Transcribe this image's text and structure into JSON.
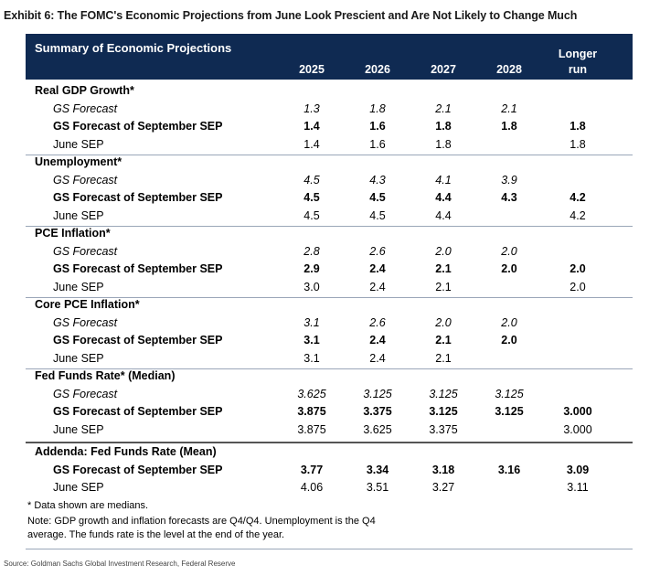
{
  "exhibit_title": "Exhibit 6: The FOMC's Economic Projections from June Look Prescient and Are Not Likely to Change Much",
  "header": {
    "title": "Summary of Economic Projections",
    "columns": [
      "2025",
      "2026",
      "2027",
      "2028"
    ],
    "longer_run": [
      "Longer",
      "run"
    ]
  },
  "sections": [
    {
      "title": "Real GDP Growth*",
      "gs": {
        "label": "GS Forecast",
        "values": [
          "1.3",
          "1.8",
          "2.1",
          "2.1",
          ""
        ]
      },
      "sep": {
        "label": "GS Forecast of September SEP",
        "values": [
          "1.4",
          "1.6",
          "1.8",
          "1.8",
          "1.8"
        ]
      },
      "june": {
        "label": "June SEP",
        "values": [
          "1.4",
          "1.6",
          "1.8",
          "",
          "1.8"
        ]
      }
    },
    {
      "title": "Unemployment*",
      "gs": {
        "label": "GS Forecast",
        "values": [
          "4.5",
          "4.3",
          "4.1",
          "3.9",
          ""
        ]
      },
      "sep": {
        "label": "GS Forecast of September SEP",
        "values": [
          "4.5",
          "4.5",
          "4.4",
          "4.3",
          "4.2"
        ]
      },
      "june": {
        "label": "June SEP",
        "values": [
          "4.5",
          "4.5",
          "4.4",
          "",
          "4.2"
        ]
      }
    },
    {
      "title": "PCE Inflation*",
      "gs": {
        "label": "GS Forecast",
        "values": [
          "2.8",
          "2.6",
          "2.0",
          "2.0",
          ""
        ]
      },
      "sep": {
        "label": "GS Forecast of September SEP",
        "values": [
          "2.9",
          "2.4",
          "2.1",
          "2.0",
          "2.0"
        ]
      },
      "june": {
        "label": "June SEP",
        "values": [
          "3.0",
          "2.4",
          "2.1",
          "",
          "2.0"
        ]
      }
    },
    {
      "title": "Core PCE Inflation*",
      "gs": {
        "label": "GS Forecast",
        "values": [
          "3.1",
          "2.6",
          "2.0",
          "2.0",
          ""
        ]
      },
      "sep": {
        "label": "GS Forecast of September SEP",
        "values": [
          "3.1",
          "2.4",
          "2.1",
          "2.0",
          ""
        ]
      },
      "june": {
        "label": "June SEP",
        "values": [
          "3.1",
          "2.4",
          "2.1",
          "",
          ""
        ]
      }
    },
    {
      "title": "Fed Funds Rate* (Median)",
      "gs": {
        "label": "GS Forecast",
        "values": [
          "3.625",
          "3.125",
          "3.125",
          "3.125",
          ""
        ]
      },
      "sep": {
        "label": "GS Forecast of September SEP",
        "values": [
          "3.875",
          "3.375",
          "3.125",
          "3.125",
          "3.000"
        ]
      },
      "june": {
        "label": "June SEP",
        "values": [
          "3.875",
          "3.625",
          "3.375",
          "",
          "3.000"
        ]
      }
    }
  ],
  "addenda": {
    "title": "Addenda: Fed Funds Rate (Mean)",
    "sep": {
      "label": "GS Forecast of September SEP",
      "values": [
        "3.77",
        "3.34",
        "3.18",
        "3.16",
        "3.09"
      ]
    },
    "june": {
      "label": "June SEP",
      "values": [
        "4.06",
        "3.51",
        "3.27",
        "",
        "3.11"
      ]
    }
  },
  "notes": {
    "medians": "* Data shown are medians.",
    "line1": "Note: GDP growth and inflation forecasts are Q4/Q4.  Unemployment is the Q4",
    "line2": "average.  The funds rate is the level at the end of the year."
  },
  "source": "Source: Goldman Sachs Global Investment Research, Federal Reserve"
}
